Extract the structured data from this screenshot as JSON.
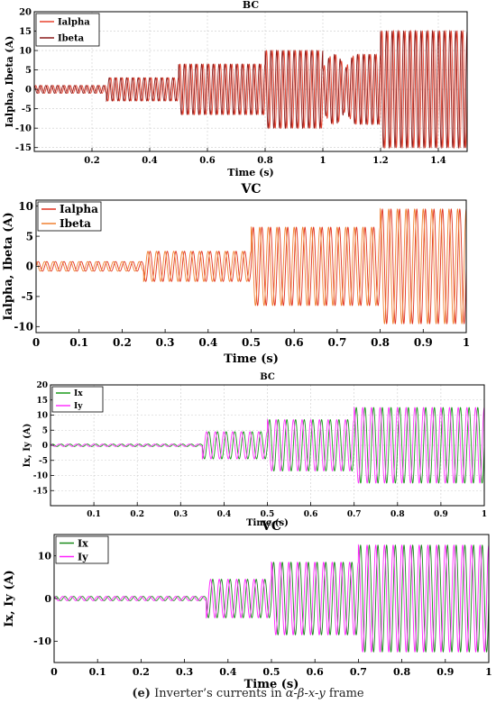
{
  "caption": {
    "label": "(e)",
    "text_before": "Inverter’s currents in ",
    "symbols": "α-β-x-y",
    "text_after": " frame"
  },
  "chart_data": [
    {
      "type": "line",
      "title": "BC",
      "xlabel": "Time (s)",
      "ylabel": "Ialpha, Ibeta (A)",
      "xlim": [
        0,
        1.5
      ],
      "ylim": [
        -16,
        20
      ],
      "xticks": [
        0.2,
        0.4,
        0.6,
        0.8,
        1,
        1.2,
        1.4
      ],
      "yticks": [
        -15,
        -10,
        -5,
        0,
        5,
        10,
        15,
        20
      ],
      "legend_position": "top-left",
      "grid": true,
      "series": [
        {
          "name": "Ialpha",
          "color": "#e8432e"
        },
        {
          "name": "Ibeta",
          "color": "#8b1a1a"
        }
      ],
      "envelope": [
        [
          0,
          0.25,
          1
        ],
        [
          0.25,
          0.5,
          3
        ],
        [
          0.5,
          0.8,
          6.5
        ],
        [
          0.8,
          1.0,
          10
        ],
        [
          1.0,
          1.2,
          9
        ],
        [
          1.2,
          1.5,
          15
        ]
      ]
    },
    {
      "type": "line",
      "title": "VC",
      "xlabel": "Time (s)",
      "ylabel": "Ialpha, Ibeta (A)",
      "xlim": [
        0,
        1
      ],
      "ylim": [
        -11,
        11
      ],
      "xticks": [
        0,
        0.1,
        0.2,
        0.3,
        0.4,
        0.5,
        0.6,
        0.7,
        0.8,
        0.9,
        1
      ],
      "yticks": [
        -10,
        -5,
        0,
        5,
        10
      ],
      "legend_position": "top-left",
      "grid": false,
      "series": [
        {
          "name": "Ialpha",
          "color": "#e0301e"
        },
        {
          "name": "Ibeta",
          "color": "#f08030"
        }
      ],
      "envelope": [
        [
          0,
          0.25,
          0.8
        ],
        [
          0.25,
          0.5,
          2.5
        ],
        [
          0.5,
          0.8,
          6.5
        ],
        [
          0.8,
          1.0,
          9.5
        ]
      ]
    },
    {
      "type": "line",
      "title": "BC",
      "xlabel": "Time (s)",
      "ylabel": "Ix, Iy (A)",
      "xlim": [
        0,
        1
      ],
      "ylim": [
        -20,
        20
      ],
      "xticks": [
        0.1,
        0.2,
        0.3,
        0.4,
        0.5,
        0.6,
        0.7,
        0.8,
        0.9,
        1
      ],
      "yticks": [
        -15,
        -10,
        -5,
        0,
        5,
        10,
        15,
        20
      ],
      "legend_position": "top-left",
      "grid": true,
      "series": [
        {
          "name": "Ix",
          "color": "#1a9a1a"
        },
        {
          "name": "Iy",
          "color": "#ff33ff"
        }
      ],
      "envelope": [
        [
          0,
          0.35,
          0.4
        ],
        [
          0.35,
          0.5,
          4.5
        ],
        [
          0.5,
          0.7,
          8.5
        ],
        [
          0.7,
          1.0,
          12.5
        ]
      ]
    },
    {
      "type": "line",
      "title": "VC",
      "xlabel": "Time (s)",
      "ylabel": "Ix, Iy (A)",
      "xlim": [
        0,
        1
      ],
      "ylim": [
        -15,
        15
      ],
      "xticks": [
        0,
        0.1,
        0.2,
        0.3,
        0.4,
        0.5,
        0.6,
        0.7,
        0.8,
        0.9,
        1
      ],
      "yticks": [
        -10,
        0,
        10
      ],
      "legend_position": "top-left",
      "grid": false,
      "series": [
        {
          "name": "Ix",
          "color": "#1a8a1a"
        },
        {
          "name": "Iy",
          "color": "#ff22ff"
        }
      ],
      "envelope": [
        [
          0,
          0.35,
          0.5
        ],
        [
          0.35,
          0.5,
          4.5
        ],
        [
          0.5,
          0.7,
          8.5
        ],
        [
          0.7,
          1.0,
          12.5
        ]
      ]
    }
  ]
}
